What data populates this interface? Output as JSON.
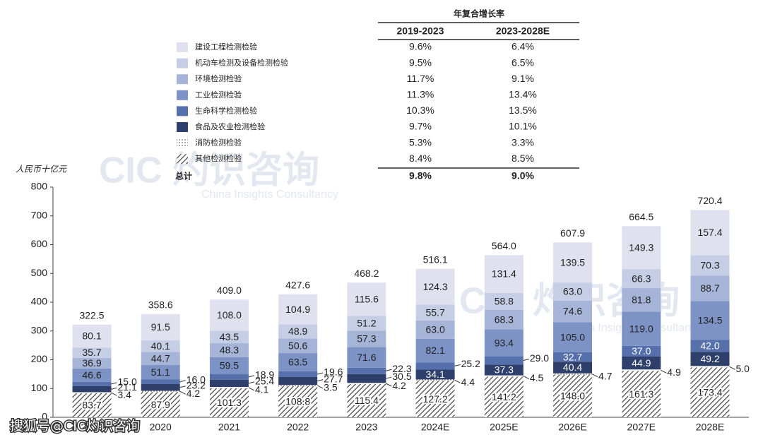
{
  "chart_data": {
    "type": "stacked_bar",
    "y_axis_label": "人民币十亿元",
    "categories": [
      "2019",
      "2020",
      "2021",
      "2022",
      "2023",
      "2024E",
      "2025E",
      "2026E",
      "2027E",
      "2028E"
    ],
    "ylim": [
      0,
      800
    ],
    "yticks": [
      0,
      100,
      200,
      300,
      400,
      500,
      600,
      700,
      800
    ],
    "series": [
      {
        "name": "其他检测检验",
        "color": "#3a3a3a",
        "pattern": "hatch",
        "values": [
          83.7,
          87.9,
          101.3,
          108.8,
          115.4,
          127.2,
          141.2,
          148.0,
          161.3,
          173.4
        ],
        "value_labels": [
          "83.7",
          "87.9",
          "101.3",
          "108.8",
          "115.4",
          "127.2",
          "141.2",
          "148.0",
          "161.3",
          "173.4"
        ],
        "cagr": [
          "8.4%",
          "8.5%"
        ]
      },
      {
        "name": "消防检测检验",
        "color": "#555555",
        "pattern": "dots",
        "values": [
          3.4,
          4.2,
          4.1,
          3.5,
          4.2,
          4.4,
          4.5,
          4.7,
          4.9,
          5.0
        ],
        "value_labels": [
          "3.4",
          "4.2",
          "4.1",
          "3.5",
          "4.2",
          "4.4",
          "4.5",
          "4.7",
          "4.9",
          "5.0"
        ],
        "cagr": [
          "5.3%",
          "3.3%"
        ]
      },
      {
        "name": "食品及农业检测检验",
        "color": "#2e3f6b",
        "values": [
          21.1,
          23.2,
          25.4,
          27.7,
          30.5,
          34.1,
          37.3,
          40.4,
          44.9,
          49.2
        ],
        "value_labels": [
          "21.1",
          "23.2",
          "25.4",
          "27.7",
          "30.5",
          "34.1",
          "37.3",
          "40.4",
          "44.9",
          "49.2"
        ],
        "cagr": [
          "9.7%",
          "10.1%"
        ]
      },
      {
        "name": "生命科学检测检验",
        "color": "#5570ab",
        "values": [
          15.0,
          16.0,
          18.9,
          19.6,
          22.3,
          25.2,
          29.0,
          32.7,
          37.0,
          42.0
        ],
        "value_labels": [
          "15.0",
          "16.0",
          "18.9",
          "19.6",
          "22.3",
          "25.2",
          "29.0",
          "32.7",
          "37.0",
          "42.0"
        ],
        "cagr": [
          "10.3%",
          "13.5%"
        ]
      },
      {
        "name": "工业检测检验",
        "color": "#7d93c6",
        "values": [
          46.6,
          51.1,
          59.5,
          63.5,
          71.6,
          82.1,
          93.4,
          105.0,
          119.0,
          134.5
        ],
        "value_labels": [
          "46.6",
          "51.1",
          "59.5",
          "63.5",
          "71.6",
          "82.1",
          "93.4",
          "105.0",
          "119.0",
          "134.5"
        ],
        "cagr": [
          "11.3%",
          "13.4%"
        ]
      },
      {
        "name": "环境检测检验",
        "color": "#a6b4d7",
        "values": [
          36.9,
          44.7,
          48.3,
          50.6,
          57.3,
          63.0,
          68.3,
          74.6,
          81.8,
          88.7
        ],
        "value_labels": [
          "36.9",
          "44.7",
          "48.3",
          "50.6",
          "57.3",
          "63.0",
          "68.3",
          "74.6",
          "81.8",
          "88.7"
        ],
        "cagr": [
          "11.7%",
          "9.1%"
        ]
      },
      {
        "name": "机动车检测及设备检测检验",
        "color": "#c5cee5",
        "values": [
          35.7,
          40.1,
          43.5,
          48.9,
          51.2,
          55.7,
          58.8,
          63.0,
          66.3,
          70.3
        ],
        "value_labels": [
          "35.7",
          "40.1",
          "43.5",
          "48.9",
          "51.2",
          "55.7",
          "58.8",
          "63.0",
          "66.3",
          "70.3"
        ],
        "cagr": [
          "9.5%",
          "6.5%"
        ]
      },
      {
        "name": "建设工程检测检验",
        "color": "#dfe2ee",
        "values": [
          80.1,
          91.5,
          108.0,
          104.9,
          115.6,
          124.3,
          131.4,
          139.5,
          149.3,
          157.4
        ],
        "value_labels": [
          "80.1",
          "91.5",
          "108.0",
          "104.9",
          "115.6",
          "124.3",
          "131.4",
          "139.5",
          "149.3",
          "157.4"
        ],
        "cagr": [
          "9.6%",
          "6.4%"
        ]
      }
    ],
    "totals": {
      "values": [
        322.5,
        358.6,
        409.0,
        427.6,
        468.2,
        516.1,
        564.0,
        607.9,
        664.5,
        720.4
      ],
      "value_labels": [
        "322.5",
        "358.6",
        "409.0",
        "427.6",
        "468.2",
        "516.1",
        "564.0",
        "607.9",
        "664.5",
        "720.4"
      ]
    },
    "cagr_title": "年复合增长率",
    "cagr_periods": [
      "2019-2023",
      "2023-2028E"
    ],
    "cagr_total_label": "总计",
    "cagr_total": [
      "9.8%",
      "9.0%"
    ],
    "watermark": "CIC 灼识咨询",
    "watermark_sub": "China Insights Consultancy",
    "source_mark": "搜狐号@CIC灼识咨询"
  }
}
